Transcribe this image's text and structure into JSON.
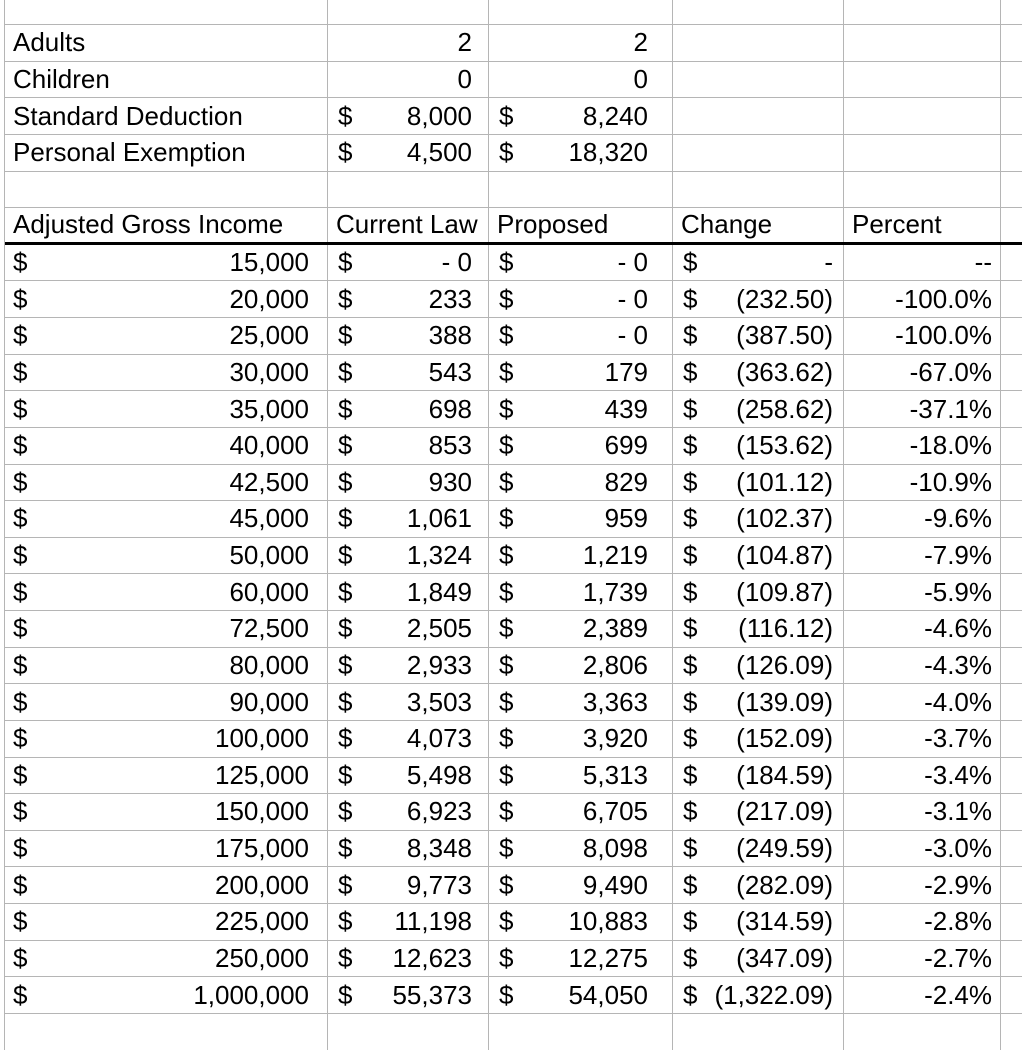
{
  "colors": {
    "background": "#ffffff",
    "gridline": "#b5b5b5",
    "header_rule": "#000000",
    "text": "#000000"
  },
  "params": {
    "rows": [
      {
        "label": "Adults",
        "current": "2",
        "proposed": "2"
      },
      {
        "label": "Children",
        "current": "0",
        "proposed": "0"
      },
      {
        "label": "Standard Deduction",
        "current": "8,000",
        "proposed": "8,240"
      },
      {
        "label": "Personal Exemption",
        "current": "4,500",
        "proposed": "18,320"
      }
    ]
  },
  "table": {
    "dollar": "$",
    "headers": [
      "Adjusted Gross Income",
      "Current Law",
      "Proposed",
      "Change",
      "Percent"
    ],
    "rows": [
      {
        "income": "15,000",
        "current": "- 0",
        "proposed": "- 0",
        "change": "-",
        "percent": "--"
      },
      {
        "income": "20,000",
        "current": "233",
        "proposed": "- 0",
        "change": "(232.50)",
        "percent": "-100.0%"
      },
      {
        "income": "25,000",
        "current": "388",
        "proposed": "- 0",
        "change": "(387.50)",
        "percent": "-100.0%"
      },
      {
        "income": "30,000",
        "current": "543",
        "proposed": "179",
        "change": "(363.62)",
        "percent": "-67.0%"
      },
      {
        "income": "35,000",
        "current": "698",
        "proposed": "439",
        "change": "(258.62)",
        "percent": "-37.1%"
      },
      {
        "income": "40,000",
        "current": "853",
        "proposed": "699",
        "change": "(153.62)",
        "percent": "-18.0%"
      },
      {
        "income": "42,500",
        "current": "930",
        "proposed": "829",
        "change": "(101.12)",
        "percent": "-10.9%"
      },
      {
        "income": "45,000",
        "current": "1,061",
        "proposed": "959",
        "change": "(102.37)",
        "percent": "-9.6%"
      },
      {
        "income": "50,000",
        "current": "1,324",
        "proposed": "1,219",
        "change": "(104.87)",
        "percent": "-7.9%"
      },
      {
        "income": "60,000",
        "current": "1,849",
        "proposed": "1,739",
        "change": "(109.87)",
        "percent": "-5.9%"
      },
      {
        "income": "72,500",
        "current": "2,505",
        "proposed": "2,389",
        "change": "(116.12)",
        "percent": "-4.6%"
      },
      {
        "income": "80,000",
        "current": "2,933",
        "proposed": "2,806",
        "change": "(126.09)",
        "percent": "-4.3%"
      },
      {
        "income": "90,000",
        "current": "3,503",
        "proposed": "3,363",
        "change": "(139.09)",
        "percent": "-4.0%"
      },
      {
        "income": "100,000",
        "current": "4,073",
        "proposed": "3,920",
        "change": "(152.09)",
        "percent": "-3.7%"
      },
      {
        "income": "125,000",
        "current": "5,498",
        "proposed": "5,313",
        "change": "(184.59)",
        "percent": "-3.4%"
      },
      {
        "income": "150,000",
        "current": "6,923",
        "proposed": "6,705",
        "change": "(217.09)",
        "percent": "-3.1%"
      },
      {
        "income": "175,000",
        "current": "8,348",
        "proposed": "8,098",
        "change": "(249.59)",
        "percent": "-3.0%"
      },
      {
        "income": "200,000",
        "current": "9,773",
        "proposed": "9,490",
        "change": "(282.09)",
        "percent": "-2.9%"
      },
      {
        "income": "225,000",
        "current": "11,198",
        "proposed": "10,883",
        "change": "(314.59)",
        "percent": "-2.8%"
      },
      {
        "income": "250,000",
        "current": "12,623",
        "proposed": "12,275",
        "change": "(347.09)",
        "percent": "-2.7%"
      },
      {
        "income": "1,000,000",
        "current": "55,373",
        "proposed": "54,050",
        "change": "(1,322.09)",
        "percent": "-2.4%"
      }
    ]
  }
}
